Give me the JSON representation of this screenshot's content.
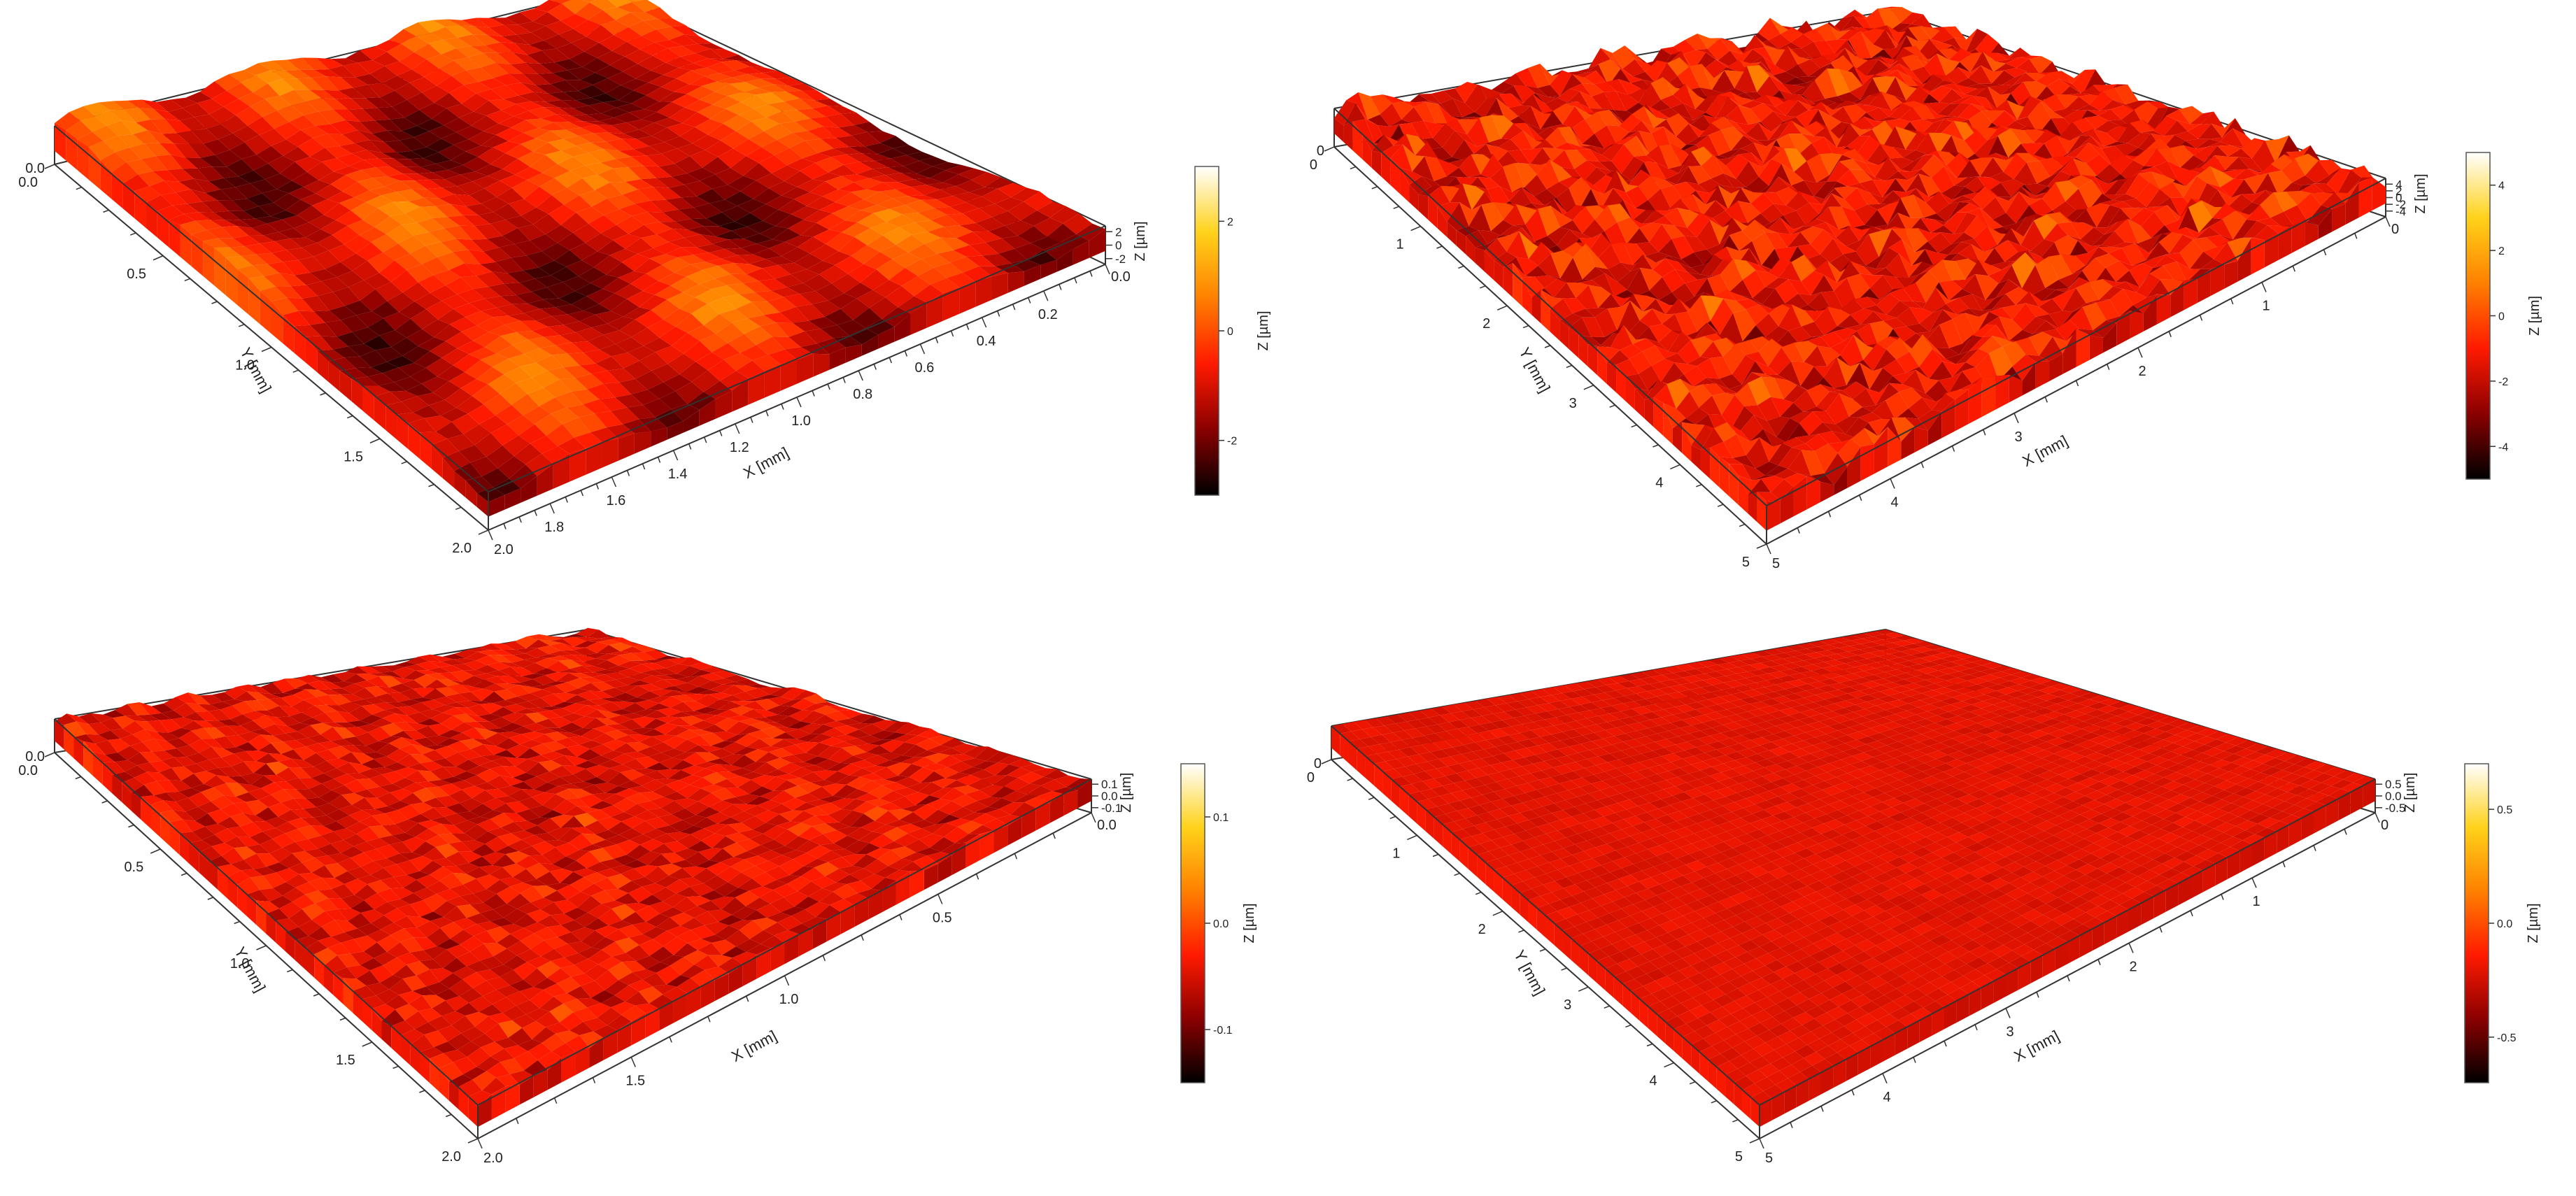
{
  "chart_data": [
    {
      "type": "surface3d",
      "colorscale": [
        "#000000",
        "#c00000",
        "#ff3a00",
        "#ffa000",
        "#ffff80",
        "#ffffff"
      ],
      "xlabel": "X [mm]",
      "ylabel": "Y [mm]",
      "zlabel": "Z [µm]",
      "x_range": [
        0,
        2.0
      ],
      "y_range": [
        0,
        2.0
      ],
      "z_range": [
        -3,
        3
      ],
      "x_ticks": [
        "0.2",
        "0.4",
        "0.6",
        "0.8",
        "1.0",
        "1.2",
        "1.4",
        "1.6",
        "1.8"
      ],
      "y_ticks": [
        "0.0",
        "0.5",
        "1.0",
        "1.5",
        "2.0"
      ],
      "z_ticks": [
        "-2",
        "0",
        "2"
      ],
      "colorbar_ticks": [
        "-2",
        "0",
        "2"
      ],
      "corner_labels": [
        "0.0",
        "2.0"
      ],
      "surface_texture": "smooth wavy hills",
      "z_variation": 0.14
    },
    {
      "type": "surface3d",
      "colorscale": [
        "#000000",
        "#c00000",
        "#ff3a00",
        "#ffa000",
        "#ffff80",
        "#ffffff"
      ],
      "xlabel": "X [mm]",
      "ylabel": "Y [mm]",
      "zlabel": "Z [µm]",
      "x_range": [
        0,
        5
      ],
      "y_range": [
        0,
        5
      ],
      "z_range": [
        -5,
        5
      ],
      "x_ticks": [
        "1",
        "2",
        "3",
        "4"
      ],
      "y_ticks": [
        "0",
        "1",
        "2",
        "3",
        "4",
        "5"
      ],
      "z_ticks": [
        "-4",
        "-2",
        "0",
        "2",
        "4"
      ],
      "colorbar_ticks": [
        "-4",
        "-2",
        "0",
        "2",
        "4"
      ],
      "corner_labels": [
        "0",
        "5"
      ],
      "surface_texture": "dense sharp peaks",
      "z_variation": 0.22
    },
    {
      "type": "surface3d",
      "colorscale": [
        "#000000",
        "#c00000",
        "#ff3a00",
        "#ffa000",
        "#ffff80",
        "#ffffff"
      ],
      "xlabel": "X [mm]",
      "ylabel": "Y [mm]",
      "zlabel": "Z [µm]",
      "x_range": [
        0,
        2.0
      ],
      "y_range": [
        0,
        2.0
      ],
      "z_range": [
        -0.15,
        0.15
      ],
      "x_ticks": [
        "0.5",
        "1.0",
        "1.5"
      ],
      "y_ticks": [
        "0.0",
        "0.5",
        "1.0",
        "1.5",
        "2.0"
      ],
      "z_ticks": [
        "-0.1",
        "0.0",
        "0.1"
      ],
      "colorbar_ticks": [
        "-0.1",
        "0.0",
        "0.1"
      ],
      "corner_labels": [
        "0.0",
        "2.0"
      ],
      "surface_texture": "fine bumps",
      "z_variation": 0.09
    },
    {
      "type": "surface3d",
      "colorscale": [
        "#000000",
        "#c00000",
        "#ff3a00",
        "#ffa000",
        "#ffff80",
        "#ffffff"
      ],
      "xlabel": "X [mm]",
      "ylabel": "Y [mm]",
      "zlabel": "Z [µm]",
      "x_range": [
        0,
        5
      ],
      "y_range": [
        0,
        5
      ],
      "z_range": [
        -0.7,
        0.7
      ],
      "x_ticks": [
        "1",
        "2",
        "3",
        "4"
      ],
      "y_ticks": [
        "0",
        "1",
        "2",
        "3",
        "4",
        "5"
      ],
      "z_ticks": [
        "-0.5",
        "0.0",
        "0.5"
      ],
      "colorbar_ticks": [
        "-0.5",
        "0.0",
        "0.5"
      ],
      "corner_labels": [
        "0",
        "5"
      ],
      "surface_texture": "very fine nearly flat",
      "z_variation": 0.03
    }
  ]
}
